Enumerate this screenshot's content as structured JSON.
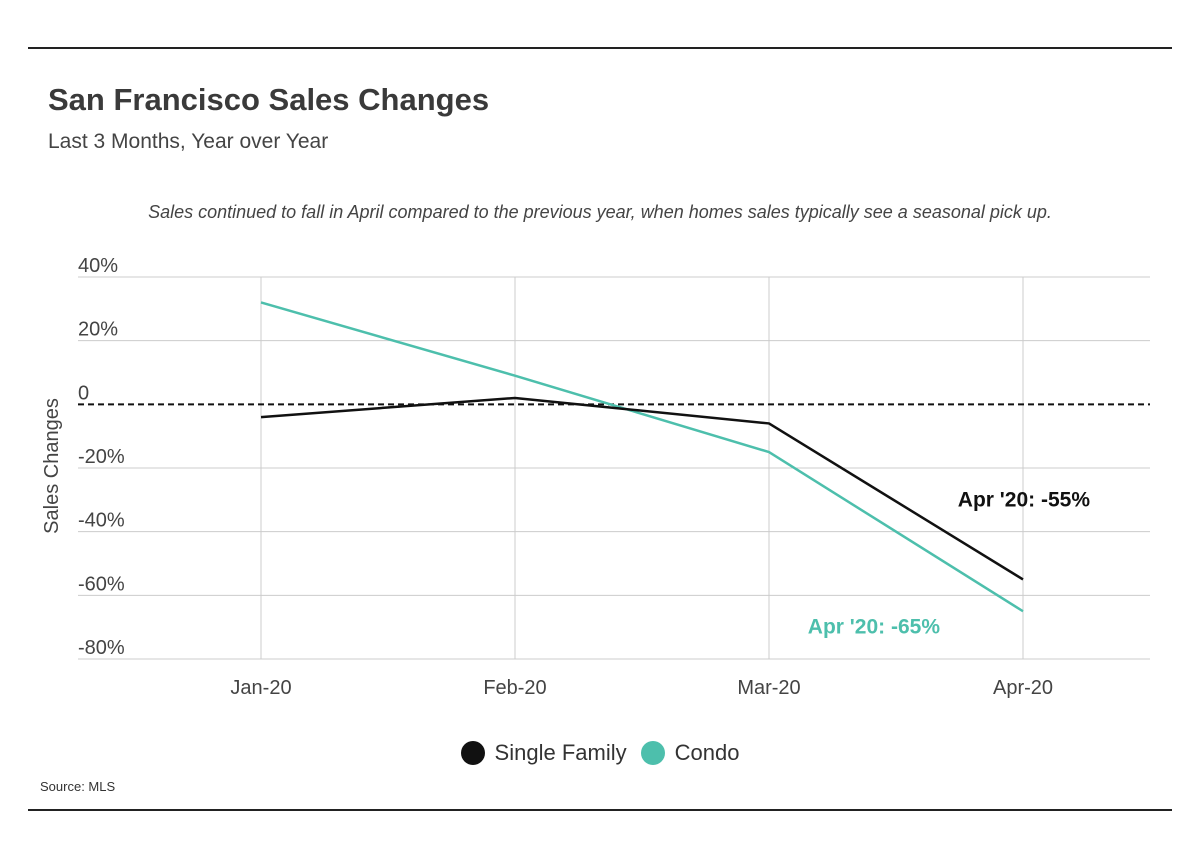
{
  "header": {
    "title": "San Francisco Sales Changes",
    "subtitle": "Last 3 Months, Year over Year",
    "annotation": "Sales continued to fall in April compared to the previous year, when homes sales typically see a seasonal pick up."
  },
  "source": "Source: MLS",
  "colors": {
    "single_family": "#111111",
    "condo": "#4dbfac",
    "grid": "#cccccc"
  },
  "chart_data": {
    "type": "line",
    "ylabel": "Sales Changes",
    "xlabel": "",
    "categories": [
      "Jan-20",
      "Feb-20",
      "Mar-20",
      "Apr-20"
    ],
    "y_ticks": [
      40,
      20,
      0,
      -20,
      -40,
      -60,
      -80
    ],
    "y_tick_labels": [
      "40%",
      "20%",
      "0",
      "-20%",
      "-40%",
      "-60%",
      "-80%"
    ],
    "ylim": [
      -80,
      40
    ],
    "zero_line": "dashed",
    "series": [
      {
        "name": "Single Family",
        "values": [
          -4,
          2,
          -6,
          -55
        ]
      },
      {
        "name": "Condo",
        "values": [
          32,
          9,
          -15,
          -65
        ]
      }
    ],
    "end_labels": [
      {
        "series": "Single Family",
        "text": "Apr '20: -55%"
      },
      {
        "series": "Condo",
        "text": "Apr '20: -65%"
      }
    ],
    "legend_position": "bottom"
  }
}
